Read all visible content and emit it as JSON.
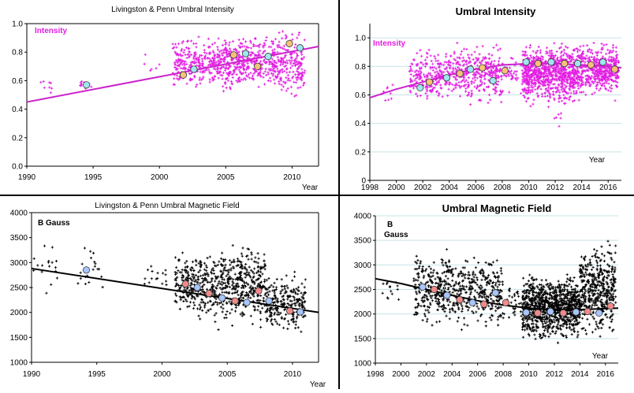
{
  "colors": {
    "intensity": "#e21ee2",
    "intensity_line": "#cc22cc",
    "field": "#000000",
    "marker_fill_cyan": "#9fe6ef",
    "marker_fill_orange": "#f5c27a",
    "marker_fill_pink": "#f08a8a",
    "marker_fill_blue": "#a7c6ff",
    "grid": "#c6e3e6"
  },
  "chart_data": [
    {
      "panel": "top-left",
      "type": "scatter",
      "title": "Livingston & Penn Umbral Intensity",
      "legend_text": "Intensity",
      "xlabel": "Year",
      "ylabel": "",
      "xlim": [
        1990,
        2012
      ],
      "ylim": [
        0.0,
        1.0
      ],
      "xticks": [
        1990,
        1995,
        2000,
        2005,
        2010
      ],
      "yticks": [
        "0.0",
        "0.2",
        "0.4",
        "0.6",
        "0.8",
        "1.0"
      ],
      "grid": false,
      "trend_line": [
        [
          1990,
          0.45
        ],
        [
          2012,
          0.84
        ]
      ],
      "averages": [
        {
          "x": 1994.5,
          "y": 0.57
        },
        {
          "x": 2001.8,
          "y": 0.64
        },
        {
          "x": 2002.6,
          "y": 0.68
        },
        {
          "x": 2005.6,
          "y": 0.78
        },
        {
          "x": 2006.5,
          "y": 0.79
        },
        {
          "x": 2007.4,
          "y": 0.7
        },
        {
          "x": 2008.2,
          "y": 0.77
        },
        {
          "x": 2009.8,
          "y": 0.86
        },
        {
          "x": 2010.6,
          "y": 0.83
        }
      ],
      "scatter_clusters": [
        {
          "x": [
            1991,
            1992
          ],
          "y": [
            0.47,
            0.66
          ],
          "n": 8
        },
        {
          "x": [
            1994,
            1995
          ],
          "y": [
            0.52,
            0.62
          ],
          "n": 12
        },
        {
          "x": [
            1998.5,
            2000
          ],
          "y": [
            0.6,
            0.85
          ],
          "n": 6
        },
        {
          "x": [
            2001,
            2004
          ],
          "y": [
            0.5,
            0.95
          ],
          "n": 220
        },
        {
          "x": [
            2004,
            2008
          ],
          "y": [
            0.5,
            0.97
          ],
          "n": 380
        },
        {
          "x": [
            2008,
            2011
          ],
          "y": [
            0.45,
            0.98
          ],
          "n": 260
        }
      ]
    },
    {
      "panel": "top-right",
      "type": "scatter",
      "title": "Umbral Intensity",
      "legend_text": "Intensity",
      "xlabel": "Year",
      "ylabel": "",
      "xlim": [
        1998,
        2017
      ],
      "ylim": [
        0.0,
        1.1
      ],
      "xticks": [
        1998,
        2000,
        2002,
        2004,
        2006,
        2008,
        2010,
        2012,
        2014,
        2016
      ],
      "yticks": [
        "0",
        "0.2",
        "0.4",
        "0.6",
        "0.8",
        "1.0"
      ],
      "grid": true,
      "trend_curve": [
        [
          1998,
          0.58
        ],
        [
          2000,
          0.64
        ],
        [
          2002,
          0.69
        ],
        [
          2004,
          0.74
        ],
        [
          2006,
          0.78
        ],
        [
          2008,
          0.81
        ],
        [
          2010,
          0.82
        ],
        [
          2012,
          0.82
        ],
        [
          2014,
          0.81
        ],
        [
          2016,
          0.8
        ],
        [
          2017,
          0.79
        ]
      ],
      "averages": [
        {
          "x": 2001.8,
          "y": 0.65
        },
        {
          "x": 2002.5,
          "y": 0.69
        },
        {
          "x": 2003.8,
          "y": 0.72
        },
        {
          "x": 2004.8,
          "y": 0.75
        },
        {
          "x": 2005.6,
          "y": 0.78
        },
        {
          "x": 2006.5,
          "y": 0.79
        },
        {
          "x": 2007.3,
          "y": 0.7
        },
        {
          "x": 2008.2,
          "y": 0.77
        },
        {
          "x": 2009.8,
          "y": 0.83
        },
        {
          "x": 2010.7,
          "y": 0.82
        },
        {
          "x": 2011.7,
          "y": 0.83
        },
        {
          "x": 2012.7,
          "y": 0.82
        },
        {
          "x": 2013.7,
          "y": 0.82
        },
        {
          "x": 2014.7,
          "y": 0.81
        },
        {
          "x": 2015.6,
          "y": 0.83
        },
        {
          "x": 2016.5,
          "y": 0.78
        }
      ],
      "scatter_clusters": [
        {
          "x": [
            1998.5,
            2000
          ],
          "y": [
            0.5,
            0.7
          ],
          "n": 10
        },
        {
          "x": [
            2001,
            2004
          ],
          "y": [
            0.52,
            0.95
          ],
          "n": 220
        },
        {
          "x": [
            2004,
            2008
          ],
          "y": [
            0.52,
            0.98
          ],
          "n": 330
        },
        {
          "x": [
            2008,
            2009.5
          ],
          "y": [
            0.6,
            0.9
          ],
          "n": 40
        },
        {
          "x": [
            2009.5,
            2014
          ],
          "y": [
            0.5,
            1.0
          ],
          "n": 900
        },
        {
          "x": [
            2014,
            2016.8
          ],
          "y": [
            0.55,
            1.0
          ],
          "n": 420
        },
        {
          "x": [
            2011.5,
            2012.5
          ],
          "y": [
            0.35,
            0.5
          ],
          "n": 6
        }
      ]
    },
    {
      "panel": "bottom-left",
      "type": "scatter",
      "title": "Livingston & Penn Umbral Magnetic Field",
      "legend_text": "B Gauss",
      "xlabel": "Year",
      "ylabel": "",
      "xlim": [
        1990,
        2012
      ],
      "ylim": [
        1000,
        4000
      ],
      "xticks": [
        1990,
        1995,
        2000,
        2005,
        2010
      ],
      "yticks": [
        "1000",
        "1500",
        "2000",
        "2500",
        "3000",
        "3500",
        "4000"
      ],
      "grid": false,
      "trend_line": [
        [
          1990,
          2880
        ],
        [
          2012,
          2000
        ]
      ],
      "averages": [
        {
          "x": 1994.2,
          "y": 2850
        },
        {
          "x": 2001.8,
          "y": 2570
        },
        {
          "x": 2002.7,
          "y": 2500
        },
        {
          "x": 2003.6,
          "y": 2380
        },
        {
          "x": 2004.6,
          "y": 2290
        },
        {
          "x": 2005.6,
          "y": 2230
        },
        {
          "x": 2006.5,
          "y": 2200
        },
        {
          "x": 2007.4,
          "y": 2430
        },
        {
          "x": 2008.2,
          "y": 2230
        },
        {
          "x": 2009.8,
          "y": 2030
        },
        {
          "x": 2010.6,
          "y": 2010
        }
      ],
      "scatter_clusters": [
        {
          "x": [
            1990,
            1992
          ],
          "y": [
            2300,
            3400
          ],
          "n": 18
        },
        {
          "x": [
            1993.5,
            1995.5
          ],
          "y": [
            2300,
            3500
          ],
          "n": 20
        },
        {
          "x": [
            1998.5,
            2000.5
          ],
          "y": [
            2300,
            3200
          ],
          "n": 16
        },
        {
          "x": [
            2001,
            2004
          ],
          "y": [
            1700,
            3400
          ],
          "n": 260
        },
        {
          "x": [
            2004,
            2008
          ],
          "y": [
            1600,
            3500
          ],
          "n": 400
        },
        {
          "x": [
            2008,
            2011
          ],
          "y": [
            1450,
            2900
          ],
          "n": 240
        }
      ]
    },
    {
      "panel": "bottom-right",
      "type": "scatter",
      "title": "Umbral Magnetic Field",
      "legend_text": "B Gauss",
      "xlabel": "Year",
      "ylabel": "",
      "xlim": [
        1998,
        2017
      ],
      "ylim": [
        1000,
        4000
      ],
      "xticks": [
        1998,
        2000,
        2002,
        2004,
        2006,
        2008,
        2010,
        2012,
        2014,
        2016
      ],
      "yticks": [
        "1000",
        "1500",
        "2000",
        "2500",
        "3000",
        "3500",
        "4000"
      ],
      "grid": true,
      "trend_curve": [
        [
          1998,
          2720
        ],
        [
          2000,
          2620
        ],
        [
          2002,
          2500
        ],
        [
          2004,
          2380
        ],
        [
          2006,
          2270
        ],
        [
          2008,
          2180
        ],
        [
          2010,
          2120
        ],
        [
          2012,
          2090
        ],
        [
          2014,
          2090
        ],
        [
          2016,
          2110
        ],
        [
          2017,
          2120
        ]
      ],
      "averages": [
        {
          "x": 2001.7,
          "y": 2550
        },
        {
          "x": 2002.6,
          "y": 2500
        },
        {
          "x": 2003.6,
          "y": 2380
        },
        {
          "x": 2004.6,
          "y": 2290
        },
        {
          "x": 2005.6,
          "y": 2230
        },
        {
          "x": 2006.5,
          "y": 2200
        },
        {
          "x": 2007.4,
          "y": 2430
        },
        {
          "x": 2008.2,
          "y": 2230
        },
        {
          "x": 2009.8,
          "y": 2030
        },
        {
          "x": 2010.7,
          "y": 2020
        },
        {
          "x": 2011.7,
          "y": 2050
        },
        {
          "x": 2012.7,
          "y": 2020
        },
        {
          "x": 2013.7,
          "y": 2040
        },
        {
          "x": 2014.6,
          "y": 2050
        },
        {
          "x": 2015.5,
          "y": 2020
        },
        {
          "x": 2016.4,
          "y": 2160
        }
      ],
      "scatter_clusters": [
        {
          "x": [
            1998.5,
            2000
          ],
          "y": [
            2100,
            2800
          ],
          "n": 14
        },
        {
          "x": [
            2001,
            2004
          ],
          "y": [
            1600,
            3400
          ],
          "n": 260
        },
        {
          "x": [
            2004,
            2008
          ],
          "y": [
            1600,
            3300
          ],
          "n": 330
        },
        {
          "x": [
            2008,
            2009.5
          ],
          "y": [
            1700,
            2700
          ],
          "n": 30
        },
        {
          "x": [
            2009.5,
            2014
          ],
          "y": [
            1350,
            2900
          ],
          "n": 1000
        },
        {
          "x": [
            2014,
            2016.8
          ],
          "y": [
            1400,
            3600
          ],
          "n": 450
        }
      ]
    }
  ]
}
